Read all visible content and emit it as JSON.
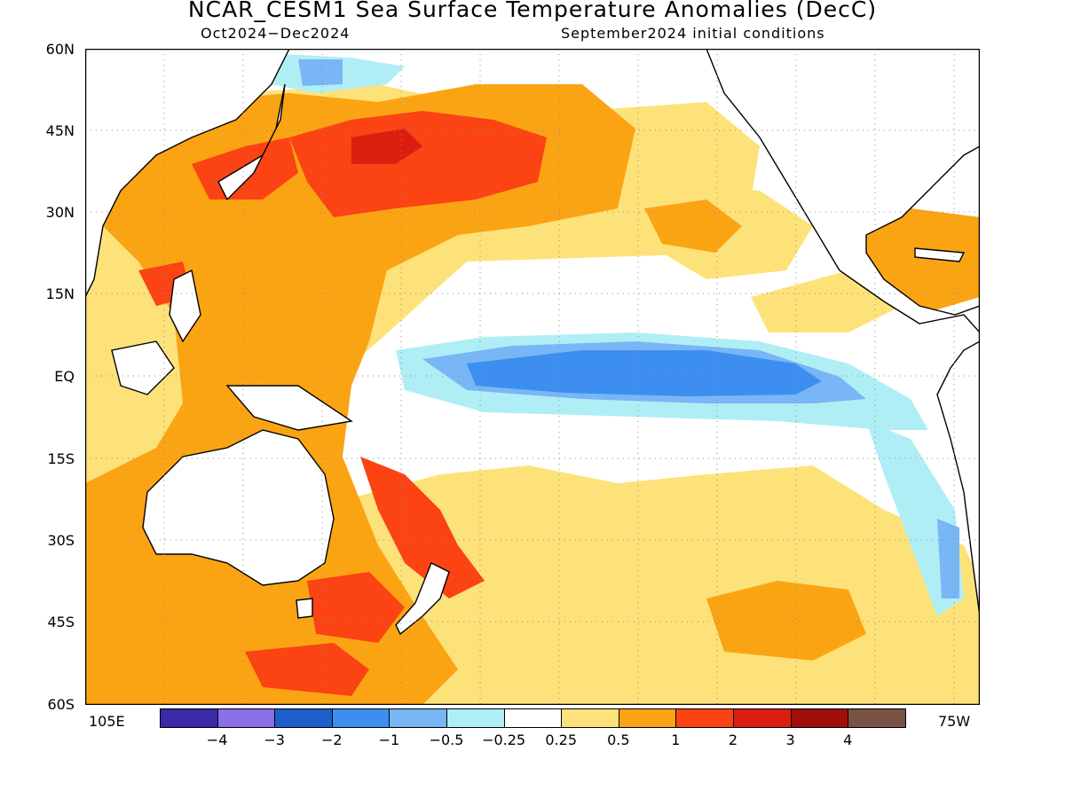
{
  "header": {
    "title": "NCAR_CESM1 Sea Surface Temperature Anomalies (DecC)",
    "period": "Oct2024−Dec2024",
    "init": "September2024 initial conditions"
  },
  "axes": {
    "lat_labels": [
      "60N",
      "45N",
      "30N",
      "15N",
      "EQ",
      "15S",
      "30S",
      "45S",
      "60S"
    ],
    "lon_left": "105E",
    "lon_right": "75W"
  },
  "colorbar": {
    "colors": [
      "#3a2aa8",
      "#8a70e8",
      "#1e5fcc",
      "#3c8ff0",
      "#78b6f5",
      "#b0eef6",
      "#ffffff",
      "#fde27a",
      "#fba413",
      "#fb4314",
      "#dc1e10",
      "#a00f0a",
      "#7a5244"
    ],
    "labels": [
      "−4",
      "−3",
      "−2",
      "−1",
      "−0.5",
      "−0.25",
      "0.25",
      "0.5",
      "1",
      "2",
      "3",
      "4"
    ]
  }
}
